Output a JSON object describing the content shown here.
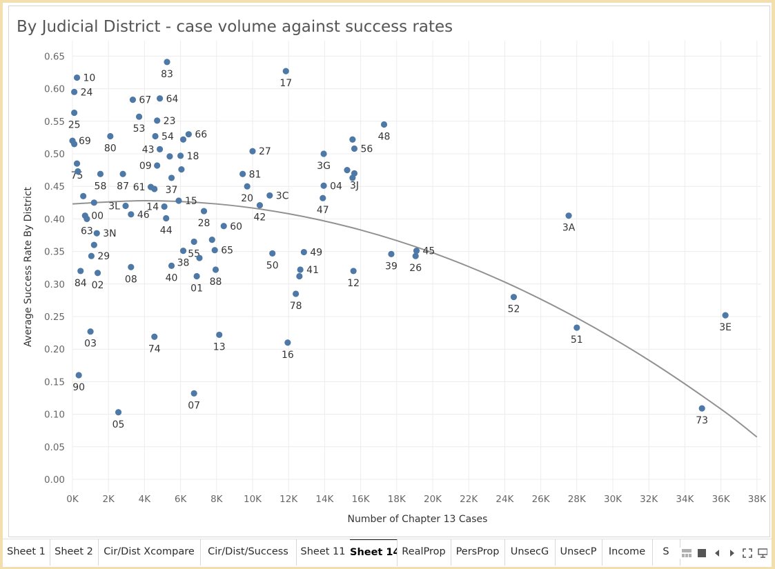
{
  "chart_data": {
    "type": "scatter",
    "title": "By Judicial District - case volume against success rates",
    "xlabel": "Number of Chapter 13 Cases",
    "ylabel": "Average Success Rate By District",
    "xlim": [
      0,
      38000
    ],
    "ylim": [
      0,
      0.65
    ],
    "xticks": [
      0,
      2000,
      4000,
      6000,
      8000,
      10000,
      12000,
      14000,
      16000,
      18000,
      20000,
      22000,
      24000,
      26000,
      28000,
      30000,
      32000,
      34000,
      36000,
      38000
    ],
    "xtick_labels": [
      "0K",
      "2K",
      "4K",
      "6K",
      "8K",
      "10K",
      "12K",
      "14K",
      "16K",
      "18K",
      "20K",
      "22K",
      "24K",
      "26K",
      "28K",
      "30K",
      "32K",
      "34K",
      "36K",
      "38K"
    ],
    "yticks": [
      0,
      0.05,
      0.1,
      0.15,
      0.2,
      0.25,
      0.3,
      0.35,
      0.4,
      0.45,
      0.5,
      0.55,
      0.6,
      0.65
    ],
    "ytick_labels": [
      "0.00",
      "0.05",
      "0.10",
      "0.15",
      "0.20",
      "0.25",
      "0.30",
      "0.35",
      "0.40",
      "0.45",
      "0.50",
      "0.55",
      "0.60",
      "0.65"
    ],
    "grid": true,
    "point_color": "#4e79a7",
    "trend_color": "#919191",
    "trendline": {
      "type": "polynomial",
      "points": [
        [
          0,
          0.423
        ],
        [
          4000,
          0.428
        ],
        [
          8000,
          0.423
        ],
        [
          12000,
          0.408
        ],
        [
          16000,
          0.383
        ],
        [
          20000,
          0.348
        ],
        [
          24000,
          0.303
        ],
        [
          28000,
          0.248
        ],
        [
          32000,
          0.183
        ],
        [
          36000,
          0.108
        ],
        [
          38000,
          0.065
        ]
      ]
    },
    "points": [
      {
        "label": "10",
        "x": 250,
        "y": 0.617
      },
      {
        "label": "24",
        "x": 100,
        "y": 0.595
      },
      {
        "label": "25",
        "x": 100,
        "y": 0.563
      },
      {
        "label": "69",
        "x": 0,
        "y": 0.52
      },
      {
        "label": "",
        "x": 100,
        "y": 0.515
      },
      {
        "label": "75",
        "x": 250,
        "y": 0.485
      },
      {
        "label": "",
        "x": 300,
        "y": 0.473
      },
      {
        "label": "",
        "x": 600,
        "y": 0.435
      },
      {
        "label": "00",
        "x": 700,
        "y": 0.405
      },
      {
        "label": "63",
        "x": 800,
        "y": 0.4
      },
      {
        "label": "",
        "x": 1200,
        "y": 0.425
      },
      {
        "label": "3N",
        "x": 1350,
        "y": 0.378
      },
      {
        "label": "",
        "x": 1200,
        "y": 0.36
      },
      {
        "label": "29",
        "x": 1050,
        "y": 0.343
      },
      {
        "label": "84",
        "x": 450,
        "y": 0.32
      },
      {
        "label": "02",
        "x": 1400,
        "y": 0.317
      },
      {
        "label": "03",
        "x": 1000,
        "y": 0.227
      },
      {
        "label": "90",
        "x": 350,
        "y": 0.16
      },
      {
        "label": "05",
        "x": 2550,
        "y": 0.103
      },
      {
        "label": "58",
        "x": 1550,
        "y": 0.469
      },
      {
        "label": "80",
        "x": 2100,
        "y": 0.527
      },
      {
        "label": "87",
        "x": 2800,
        "y": 0.469
      },
      {
        "label": "67",
        "x": 3350,
        "y": 0.583
      },
      {
        "label": "53",
        "x": 3700,
        "y": 0.557
      },
      {
        "label": "3L",
        "x": 2950,
        "y": 0.42
      },
      {
        "label": "46",
        "x": 3250,
        "y": 0.407
      },
      {
        "label": "08",
        "x": 3250,
        "y": 0.326
      },
      {
        "label": "83",
        "x": 5250,
        "y": 0.641
      },
      {
        "label": "64",
        "x": 4850,
        "y": 0.585
      },
      {
        "label": "23",
        "x": 4700,
        "y": 0.551
      },
      {
        "label": "54",
        "x": 4600,
        "y": 0.527
      },
      {
        "label": "43",
        "x": 4850,
        "y": 0.507
      },
      {
        "label": "09",
        "x": 4700,
        "y": 0.482
      },
      {
        "label": "61",
        "x": 4350,
        "y": 0.449
      },
      {
        "label": "",
        "x": 4550,
        "y": 0.446
      },
      {
        "label": "14",
        "x": 5100,
        "y": 0.419
      },
      {
        "label": "44",
        "x": 5200,
        "y": 0.401
      },
      {
        "label": "66",
        "x": 6450,
        "y": 0.53
      },
      {
        "label": "",
        "x": 6150,
        "y": 0.522
      },
      {
        "label": "",
        "x": 5400,
        "y": 0.496
      },
      {
        "label": "18",
        "x": 6000,
        "y": 0.497
      },
      {
        "label": "",
        "x": 6050,
        "y": 0.476
      },
      {
        "label": "37",
        "x": 5500,
        "y": 0.463
      },
      {
        "label": "15",
        "x": 5900,
        "y": 0.428
      },
      {
        "label": "40",
        "x": 5500,
        "y": 0.328
      },
      {
        "label": "74",
        "x": 4550,
        "y": 0.219
      },
      {
        "label": "38",
        "x": 6150,
        "y": 0.351
      },
      {
        "label": "55",
        "x": 6750,
        "y": 0.365
      },
      {
        "label": "28",
        "x": 7300,
        "y": 0.412
      },
      {
        "label": "",
        "x": 7050,
        "y": 0.34
      },
      {
        "label": "01",
        "x": 6900,
        "y": 0.312
      },
      {
        "label": "65",
        "x": 7900,
        "y": 0.352
      },
      {
        "label": "",
        "x": 7750,
        "y": 0.368
      },
      {
        "label": "88",
        "x": 7950,
        "y": 0.322
      },
      {
        "label": "60",
        "x": 8400,
        "y": 0.389
      },
      {
        "label": "13",
        "x": 8150,
        "y": 0.222
      },
      {
        "label": "07",
        "x": 6750,
        "y": 0.132
      },
      {
        "label": "81",
        "x": 9450,
        "y": 0.469
      },
      {
        "label": "20",
        "x": 9700,
        "y": 0.45
      },
      {
        "label": "27",
        "x": 10000,
        "y": 0.504
      },
      {
        "label": "3C",
        "x": 10950,
        "y": 0.436
      },
      {
        "label": "42",
        "x": 10400,
        "y": 0.421
      },
      {
        "label": "50",
        "x": 11100,
        "y": 0.347
      },
      {
        "label": "17",
        "x": 11850,
        "y": 0.627
      },
      {
        "label": "16",
        "x": 11950,
        "y": 0.21
      },
      {
        "label": "49",
        "x": 12850,
        "y": 0.349
      },
      {
        "label": "41",
        "x": 12650,
        "y": 0.322
      },
      {
        "label": "",
        "x": 12600,
        "y": 0.312
      },
      {
        "label": "78",
        "x": 12400,
        "y": 0.285
      },
      {
        "label": "3G",
        "x": 13950,
        "y": 0.5
      },
      {
        "label": "04",
        "x": 13950,
        "y": 0.451
      },
      {
        "label": "47",
        "x": 13900,
        "y": 0.432
      },
      {
        "label": "48",
        "x": 17300,
        "y": 0.545
      },
      {
        "label": "56",
        "x": 15650,
        "y": 0.508
      },
      {
        "label": "",
        "x": 15550,
        "y": 0.522
      },
      {
        "label": "3J",
        "x": 15650,
        "y": 0.47
      },
      {
        "label": "",
        "x": 15250,
        "y": 0.475
      },
      {
        "label": "",
        "x": 15550,
        "y": 0.463
      },
      {
        "label": "12",
        "x": 15600,
        "y": 0.32
      },
      {
        "label": "39",
        "x": 17700,
        "y": 0.346
      },
      {
        "label": "45",
        "x": 19100,
        "y": 0.351
      },
      {
        "label": "26",
        "x": 19050,
        "y": 0.343
      },
      {
        "label": "52",
        "x": 24500,
        "y": 0.28
      },
      {
        "label": "3A",
        "x": 27550,
        "y": 0.405
      },
      {
        "label": "51",
        "x": 28000,
        "y": 0.233
      },
      {
        "label": "3E",
        "x": 36250,
        "y": 0.252
      },
      {
        "label": "73",
        "x": 34950,
        "y": 0.109
      }
    ]
  },
  "tabs": [
    {
      "label": "Sheet 1",
      "active": false
    },
    {
      "label": "Sheet 2",
      "active": false
    },
    {
      "label": "Cir/Dist Xcompare",
      "active": false
    },
    {
      "label": "Cir/Dist/Success",
      "active": false
    },
    {
      "label": "Sheet 11",
      "active": false
    },
    {
      "label": "Sheet 14",
      "active": true
    },
    {
      "label": "RealProp",
      "active": false
    },
    {
      "label": "PersProp",
      "active": false
    },
    {
      "label": "UnsecG",
      "active": false
    },
    {
      "label": "UnsecP",
      "active": false
    },
    {
      "label": "Income",
      "active": false
    },
    {
      "label": "S",
      "active": false
    }
  ],
  "tab_controls": [
    {
      "icon": "show-filmstrip-icon"
    },
    {
      "icon": "show-tabs-icon"
    },
    {
      "icon": "previous-sheet-icon"
    },
    {
      "icon": "next-sheet-icon"
    },
    {
      "icon": "fullscreen-icon"
    },
    {
      "icon": "presentation-mode-icon"
    }
  ]
}
